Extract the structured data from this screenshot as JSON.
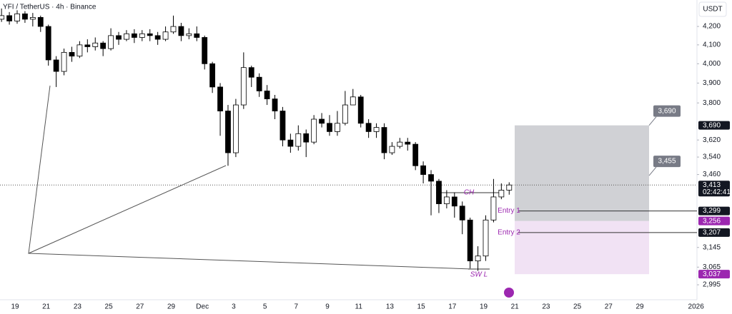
{
  "chart_data": {
    "type": "candlestick",
    "title": "YFI / TetherUS · 4h · Binance",
    "currency_button": "USDT",
    "log_scale": true,
    "ylim": [
      2937,
      4348
    ],
    "yticks": [
      {
        "value": 4200,
        "label": "4,200"
      },
      {
        "value": 4100,
        "label": "4,100"
      },
      {
        "value": 4000,
        "label": "4,000"
      },
      {
        "value": 3900,
        "label": "3,900"
      },
      {
        "value": 3800,
        "label": "3,800"
      },
      {
        "value": 3620,
        "label": "3,620"
      },
      {
        "value": 3540,
        "label": "3,540"
      },
      {
        "value": 3460,
        "label": "3,460"
      },
      {
        "value": 3145,
        "label": "3,145"
      },
      {
        "value": 3065,
        "label": "3,065"
      },
      {
        "value": 2995,
        "label": "2,995"
      }
    ],
    "x_labels": [
      "19",
      "21",
      "23",
      "25",
      "27",
      "29",
      "Dec",
      "3",
      "5",
      "7",
      "9",
      "11",
      "13",
      "15",
      "17",
      "19",
      "21",
      "23",
      "25",
      "27",
      "29",
      "2026"
    ],
    "up_color": "#ffffff",
    "down_color": "#000000",
    "border_color": "#000000",
    "candles": {
      "open": [
        4240,
        4260,
        4230,
        4270,
        4240,
        4250,
        4200,
        4020,
        3960,
        4060,
        4040,
        4100,
        4090,
        4110,
        4080,
        4150,
        4130,
        4160,
        4140,
        4160,
        4150,
        4130,
        4170,
        4200,
        4150,
        4160,
        4140,
        4000,
        3880,
        3760,
        3560,
        3790,
        3980,
        3930,
        3860,
        3820,
        3760,
        3620,
        3590,
        3650,
        3610,
        3720,
        3700,
        3660,
        3700,
        3790,
        3830,
        3700,
        3660,
        3680,
        3560,
        3590,
        3610,
        3600,
        3500,
        3460,
        3430,
        3330,
        3360,
        3320,
        3260,
        3090,
        3110,
        3260,
        3360,
        3390
      ],
      "high": [
        4300,
        4280,
        4290,
        4285,
        4275,
        4260,
        4210,
        4040,
        4080,
        4090,
        4120,
        4130,
        4140,
        4120,
        4190,
        4170,
        4180,
        4185,
        4180,
        4185,
        4170,
        4200,
        4260,
        4220,
        4190,
        4200,
        4150,
        4010,
        3900,
        3790,
        3820,
        4060,
        3990,
        3950,
        3890,
        3840,
        3780,
        3650,
        3690,
        3670,
        3740,
        3750,
        3740,
        3760,
        3860,
        3870,
        3840,
        3720,
        3700,
        3700,
        3610,
        3630,
        3630,
        3610,
        3520,
        3480,
        3440,
        3390,
        3380,
        3340,
        3270,
        3150,
        3280,
        3440,
        3420,
        3425
      ],
      "low": [
        4225,
        4210,
        4215,
        4220,
        4200,
        4170,
        3990,
        3880,
        3940,
        4010,
        4030,
        4060,
        4070,
        4040,
        4070,
        4100,
        4120,
        4110,
        4120,
        4120,
        4100,
        4120,
        4160,
        4120,
        4130,
        4120,
        3970,
        3850,
        3640,
        3500,
        3540,
        3770,
        3880,
        3830,
        3790,
        3720,
        3590,
        3560,
        3570,
        3540,
        3600,
        3680,
        3640,
        3640,
        3690,
        3790,
        3680,
        3630,
        3630,
        3530,
        3550,
        3580,
        3570,
        3480,
        3420,
        3280,
        3290,
        3310,
        3270,
        3200,
        3060,
        3050,
        3090,
        3250,
        3350,
        3370
      ],
      "close": [
        4260,
        4230,
        4270,
        4240,
        4250,
        4200,
        4020,
        3960,
        4060,
        4040,
        4100,
        4090,
        4110,
        4080,
        4150,
        4130,
        4160,
        4140,
        4160,
        4150,
        4130,
        4170,
        4200,
        4150,
        4160,
        4140,
        4000,
        3880,
        3760,
        3560,
        3790,
        3980,
        3930,
        3860,
        3820,
        3760,
        3620,
        3590,
        3650,
        3610,
        3720,
        3700,
        3660,
        3700,
        3790,
        3830,
        3700,
        3660,
        3680,
        3560,
        3590,
        3610,
        3600,
        3500,
        3460,
        3430,
        3330,
        3360,
        3320,
        3260,
        3090,
        3110,
        3260,
        3360,
        3390,
        3413
      ]
    },
    "price_tags": [
      {
        "value": 3690,
        "label": "3,690",
        "color": "#131722"
      },
      {
        "value": 3413,
        "label": "3,413",
        "color": "#131722"
      },
      {
        "value": 3299,
        "label": "3,299",
        "color": "#131722"
      },
      {
        "value": 3256,
        "label": "3,256",
        "color": "#9c27b0"
      },
      {
        "value": 3207,
        "label": "3,207",
        "color": "#131722"
      },
      {
        "value": 3037,
        "label": "3,037",
        "color": "#9c27b0"
      }
    ],
    "countdown": "02:42:41",
    "targets": [
      {
        "value": 3690,
        "label": "3,690"
      },
      {
        "value": 3455,
        "label": "3,455"
      }
    ],
    "annotations": {
      "ch": "CH",
      "swl": "SW L",
      "entry1": "Entry 1",
      "entry2": "Entry 2"
    }
  }
}
